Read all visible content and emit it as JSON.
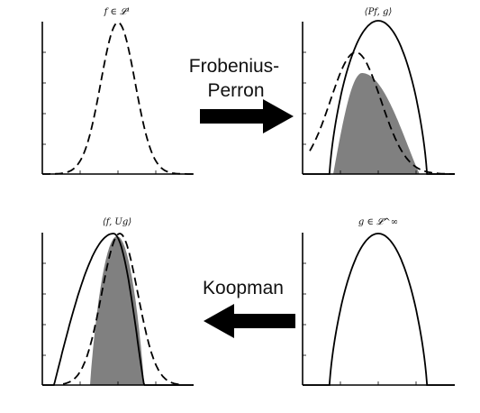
{
  "panels": {
    "f": {
      "title": "f ∈ 𝓛¹"
    },
    "pf": {
      "title": "⟨Pf, g⟩"
    },
    "fug": {
      "title": "⟨f, Ug⟩"
    },
    "g": {
      "title": "g ∈ 𝓛^∞"
    }
  },
  "arrows": {
    "frobenius": {
      "label_line1": "Frobenius-",
      "label_line2": "Perron",
      "direction": "right"
    },
    "koopman": {
      "label": "Koopman",
      "direction": "left"
    }
  },
  "colors": {
    "curve": "#000000",
    "fill": "#808080",
    "background": "#ffffff"
  }
}
